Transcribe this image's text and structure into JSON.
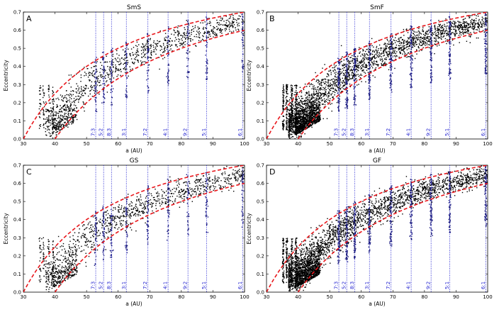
{
  "chart_data": [
    {
      "type": "scatter",
      "title": "SmS",
      "panel_label": "A",
      "xlabel": "a (AU)",
      "ylabel": "Eccentricity",
      "xlim": [
        30,
        100
      ],
      "ylim": [
        0,
        0.7
      ],
      "xticks": [
        30,
        40,
        50,
        60,
        70,
        80,
        90,
        100
      ],
      "yticks": [
        0.0,
        0.1,
        0.2,
        0.3,
        0.4,
        0.5,
        0.6,
        0.7
      ],
      "density": "sparse",
      "seed": 11,
      "resonances": [
        {
          "label": "7:3",
          "a": 52.9
        },
        {
          "label": "5:2",
          "a": 55.4
        },
        {
          "label": "8:3",
          "a": 57.9
        },
        {
          "label": "3:1",
          "a": 62.6
        },
        {
          "label": "7:2",
          "a": 69.4
        },
        {
          "label": "4:1",
          "a": 75.8
        },
        {
          "label": "9:2",
          "a": 82.1
        },
        {
          "label": "5:1",
          "a": 88.0
        },
        {
          "label": "6:1",
          "a": 99.4
        }
      ],
      "series": [
        {
          "name": "upper perihelion boundary (q = 30 AU)",
          "style": "red-dashed",
          "x": [
            30,
            35,
            40,
            45,
            50,
            55,
            60,
            65,
            70,
            75,
            80,
            85,
            90,
            95,
            100
          ],
          "y": [
            0.0,
            0.143,
            0.25,
            0.333,
            0.4,
            0.455,
            0.5,
            0.538,
            0.571,
            0.6,
            0.625,
            0.647,
            0.667,
            0.684,
            0.7
          ]
        },
        {
          "name": "lower perihelion boundary (q = 40 AU)",
          "style": "red-dashed",
          "x": [
            40,
            45,
            50,
            55,
            60,
            65,
            70,
            75,
            80,
            85,
            90,
            95,
            100
          ],
          "y": [
            0.0,
            0.111,
            0.2,
            0.273,
            0.333,
            0.385,
            0.429,
            0.467,
            0.5,
            0.529,
            0.556,
            0.579,
            0.6
          ]
        }
      ]
    },
    {
      "type": "scatter",
      "title": "SmF",
      "panel_label": "B",
      "xlabel": "a (AU)",
      "ylabel": "Eccentricity",
      "xlim": [
        30,
        100
      ],
      "ylim": [
        0,
        0.7
      ],
      "xticks": [
        30,
        40,
        50,
        60,
        70,
        80,
        90,
        100
      ],
      "yticks": [
        0.0,
        0.1,
        0.2,
        0.3,
        0.4,
        0.5,
        0.6,
        0.7
      ],
      "density": "dense",
      "seed": 23,
      "resonances": [
        {
          "label": "7:3",
          "a": 52.9
        },
        {
          "label": "5:2",
          "a": 55.4
        },
        {
          "label": "8:3",
          "a": 57.9
        },
        {
          "label": "3:1",
          "a": 62.6
        },
        {
          "label": "7:2",
          "a": 69.4
        },
        {
          "label": "4:1",
          "a": 75.8
        },
        {
          "label": "9:2",
          "a": 82.1
        },
        {
          "label": "5:1",
          "a": 88.0
        },
        {
          "label": "6:1",
          "a": 99.4
        }
      ],
      "series": [
        {
          "name": "upper perihelion boundary (q = 30 AU)",
          "style": "red-dashed",
          "x": [
            30,
            35,
            40,
            45,
            50,
            55,
            60,
            65,
            70,
            75,
            80,
            85,
            90,
            95,
            100
          ],
          "y": [
            0.0,
            0.143,
            0.25,
            0.333,
            0.4,
            0.455,
            0.5,
            0.538,
            0.571,
            0.6,
            0.625,
            0.647,
            0.667,
            0.684,
            0.7
          ]
        },
        {
          "name": "lower perihelion boundary (q = 40 AU)",
          "style": "red-dashed",
          "x": [
            40,
            45,
            50,
            55,
            60,
            65,
            70,
            75,
            80,
            85,
            90,
            95,
            100
          ],
          "y": [
            0.0,
            0.111,
            0.2,
            0.273,
            0.333,
            0.385,
            0.429,
            0.467,
            0.5,
            0.529,
            0.556,
            0.579,
            0.6
          ]
        }
      ]
    },
    {
      "type": "scatter",
      "title": "GS",
      "panel_label": "C",
      "xlabel": "a (AU)",
      "ylabel": "Eccentricity",
      "xlim": [
        30,
        100
      ],
      "ylim": [
        0,
        0.7
      ],
      "xticks": [
        30,
        40,
        50,
        60,
        70,
        80,
        90,
        100
      ],
      "yticks": [
        0.0,
        0.1,
        0.2,
        0.3,
        0.4,
        0.5,
        0.6,
        0.7
      ],
      "density": "sparse",
      "seed": 37,
      "resonances": [
        {
          "label": "7:3",
          "a": 52.9
        },
        {
          "label": "5:2",
          "a": 55.4
        },
        {
          "label": "8:3",
          "a": 57.9
        },
        {
          "label": "3:1",
          "a": 62.6
        },
        {
          "label": "7:2",
          "a": 69.4
        },
        {
          "label": "4:1",
          "a": 75.8
        },
        {
          "label": "9:2",
          "a": 82.1
        },
        {
          "label": "5:1",
          "a": 88.0
        },
        {
          "label": "6:1",
          "a": 99.4
        }
      ],
      "series": [
        {
          "name": "upper perihelion boundary (q = 30 AU)",
          "style": "red-dashed",
          "x": [
            30,
            35,
            40,
            45,
            50,
            55,
            60,
            65,
            70,
            75,
            80,
            85,
            90,
            95,
            100
          ],
          "y": [
            0.0,
            0.143,
            0.25,
            0.333,
            0.4,
            0.455,
            0.5,
            0.538,
            0.571,
            0.6,
            0.625,
            0.647,
            0.667,
            0.684,
            0.7
          ]
        },
        {
          "name": "lower perihelion boundary (q = 40 AU)",
          "style": "red-dashed",
          "x": [
            40,
            45,
            50,
            55,
            60,
            65,
            70,
            75,
            80,
            85,
            90,
            95,
            100
          ],
          "y": [
            0.0,
            0.111,
            0.2,
            0.273,
            0.333,
            0.385,
            0.429,
            0.467,
            0.5,
            0.529,
            0.556,
            0.579,
            0.6
          ]
        }
      ]
    },
    {
      "type": "scatter",
      "title": "GF",
      "panel_label": "D",
      "xlabel": "a (AU)",
      "ylabel": "Eccentricity",
      "xlim": [
        30,
        100
      ],
      "ylim": [
        0,
        0.7
      ],
      "xticks": [
        30,
        40,
        50,
        60,
        70,
        80,
        90,
        100
      ],
      "yticks": [
        0.0,
        0.1,
        0.2,
        0.3,
        0.4,
        0.5,
        0.6,
        0.7
      ],
      "density": "dense",
      "seed": 53,
      "resonances": [
        {
          "label": "7:3",
          "a": 52.9
        },
        {
          "label": "5:2",
          "a": 55.4
        },
        {
          "label": "8:3",
          "a": 57.9
        },
        {
          "label": "3:1",
          "a": 62.6
        },
        {
          "label": "7:2",
          "a": 69.4
        },
        {
          "label": "4:1",
          "a": 75.8
        },
        {
          "label": "9:2",
          "a": 82.1
        },
        {
          "label": "5:1",
          "a": 88.0
        },
        {
          "label": "6:1",
          "a": 99.4
        }
      ],
      "series": [
        {
          "name": "upper perihelion boundary (q = 30 AU)",
          "style": "red-dashed",
          "x": [
            30,
            35,
            40,
            45,
            50,
            55,
            60,
            65,
            70,
            75,
            80,
            85,
            90,
            95,
            100
          ],
          "y": [
            0.0,
            0.143,
            0.25,
            0.333,
            0.4,
            0.455,
            0.5,
            0.538,
            0.571,
            0.6,
            0.625,
            0.647,
            0.667,
            0.684,
            0.7
          ]
        },
        {
          "name": "lower perihelion boundary (q = 40 AU)",
          "style": "red-dashed",
          "x": [
            40,
            45,
            50,
            55,
            60,
            65,
            70,
            75,
            80,
            85,
            90,
            95,
            100
          ],
          "y": [
            0.0,
            0.111,
            0.2,
            0.273,
            0.333,
            0.385,
            0.429,
            0.467,
            0.5,
            0.529,
            0.556,
            0.579,
            0.6
          ]
        }
      ]
    }
  ],
  "colors": {
    "points": "#000000",
    "boundary": "#e8161b",
    "resonance": "#1f1fd0",
    "resonance_points": "#1a1a80"
  }
}
